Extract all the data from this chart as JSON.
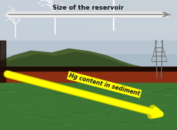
{
  "title_text": "Size of the reservoir",
  "arrow1_color": "#c8c8c8",
  "arrow1_text_color": "#111111",
  "arrow2_text": "Hg content in sediment",
  "arrow2_color": "#ffff00",
  "arrow2_text_color": "#111111",
  "figsize": [
    2.57,
    1.89
  ],
  "dpi": 100,
  "sky_colors": [
    "#c0cdd8",
    "#9aacbe",
    "#8899aa"
  ],
  "cloud_color": "#d0d8e0",
  "hill_color": "#4a6635",
  "hill2_color": "#3a5528",
  "soil_color": "#8b3318",
  "soil_dark": "#3a1a08",
  "water_color1": "#3d7a3a",
  "water_color2": "#4a8a44",
  "water_dark": "#2d6030",
  "pylon_color": "#707070"
}
